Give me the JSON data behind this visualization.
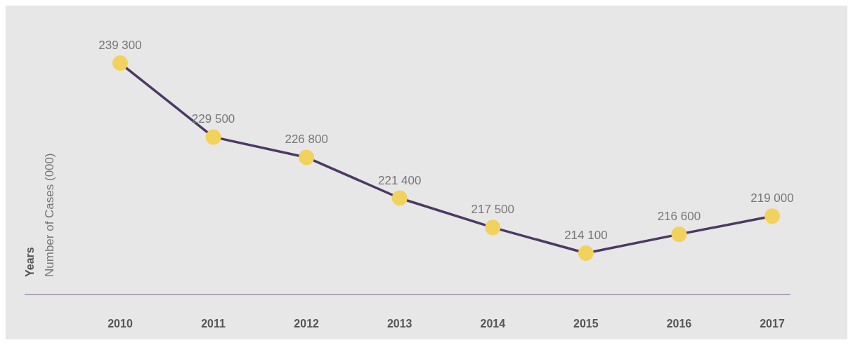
{
  "chart_data": {
    "type": "line",
    "ylabel": "Number of Cases (000)",
    "annotations": [
      "Years"
    ],
    "categories": [
      "2010",
      "2011",
      "2012",
      "2013",
      "2014",
      "2015",
      "2016",
      "2017"
    ],
    "series": [
      {
        "color": "#4b3a63",
        "colors": [
          "#f2d25c",
          "#f2d25c",
          "#f2d25c",
          "#f2d25c",
          "#f2d25c",
          "#f2d25c",
          "#f2d25c",
          "#f2d25c"
        ],
        "values": [
          239300,
          229500,
          226800,
          221400,
          217500,
          214100,
          216600,
          219000
        ]
      }
    ],
    "data_labels": true,
    "marker": "circle",
    "line_style": "solid"
  }
}
